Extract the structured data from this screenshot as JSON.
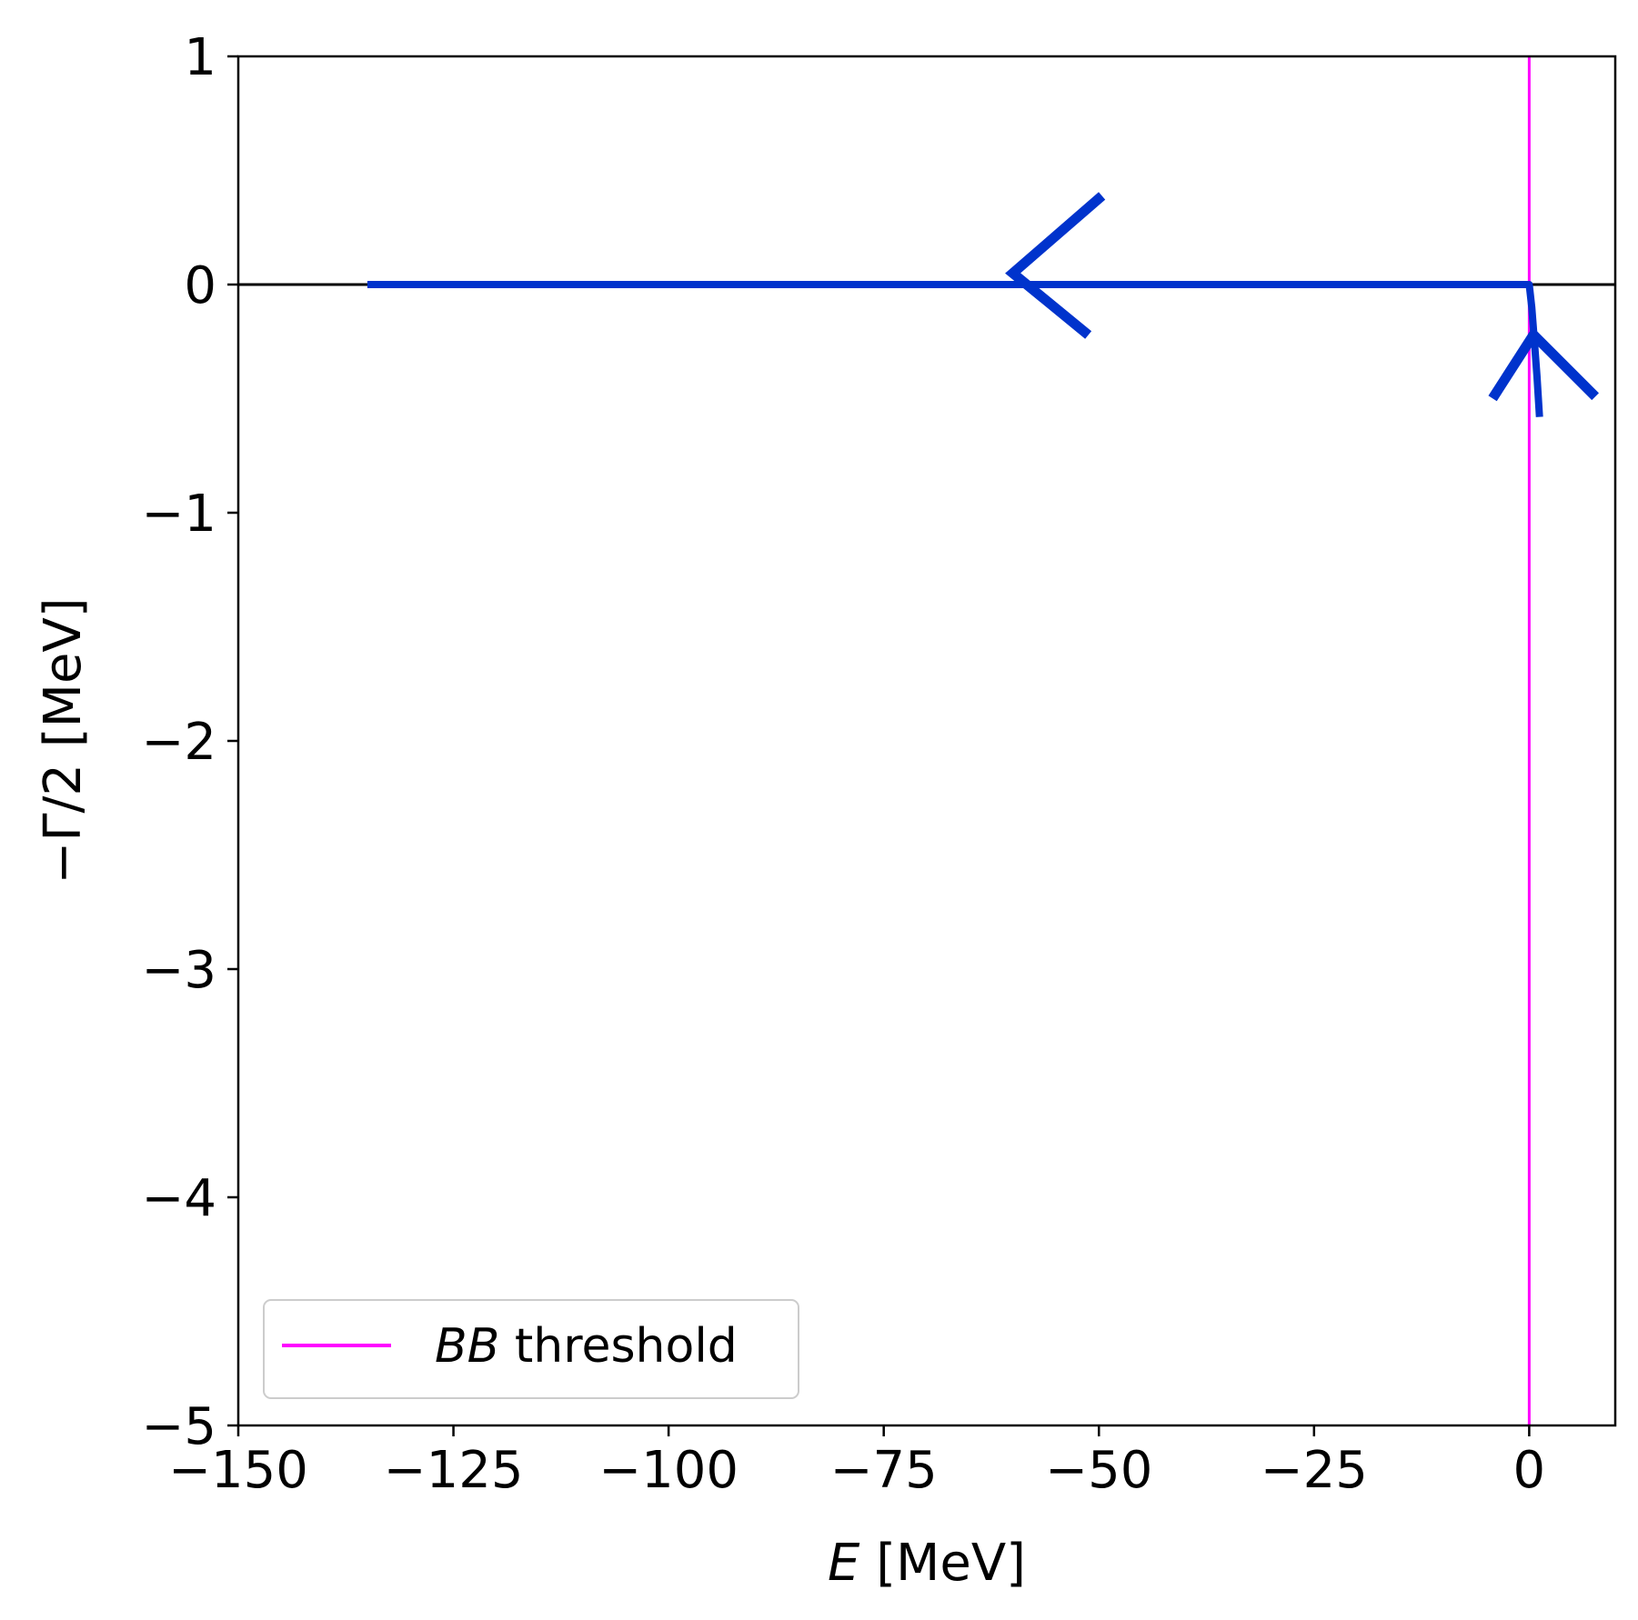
{
  "chart_data": {
    "type": "line",
    "xlabel": {
      "var": "E",
      "unit": " [MeV]"
    },
    "ylabel": "−Γ/2 [MeV]",
    "xlim": [
      -150,
      10
    ],
    "ylim": [
      -5,
      1
    ],
    "xticks": [
      {
        "value": -150,
        "label": "−150"
      },
      {
        "value": -125,
        "label": "−125"
      },
      {
        "value": -100,
        "label": "−100"
      },
      {
        "value": -75,
        "label": "−75"
      },
      {
        "value": -50,
        "label": "−50"
      },
      {
        "value": -25,
        "label": "−25"
      },
      {
        "value": 0,
        "label": "0"
      }
    ],
    "yticks": [
      {
        "value": 1,
        "label": "1"
      },
      {
        "value": 0,
        "label": "0"
      },
      {
        "value": -1,
        "label": "−1"
      },
      {
        "value": -2,
        "label": "−2"
      },
      {
        "value": -3,
        "label": "−3"
      },
      {
        "value": -4,
        "label": "−4"
      },
      {
        "value": -5,
        "label": "−5"
      }
    ],
    "grid": false,
    "legend_position": "lower-left",
    "reference_lines": [
      {
        "orientation": "horizontal",
        "value": 0,
        "color": "#000000"
      },
      {
        "orientation": "vertical",
        "value": 0,
        "color": "#ff00ff",
        "legend": {
          "italic": "BB",
          "text": " threshold"
        }
      }
    ],
    "series": [
      {
        "color": "#0033cc",
        "points": [
          [
            -135,
            0
          ],
          [
            -60,
            0
          ],
          [
            0,
            0
          ],
          [
            0.3,
            -0.1
          ],
          [
            0.6,
            -0.25
          ],
          [
            0.9,
            -0.4
          ],
          [
            1.2,
            -0.58
          ]
        ]
      }
    ],
    "arrows": [
      {
        "tip": [
          -60,
          0.05
        ],
        "direction": "left",
        "color": "#0033cc"
      },
      {
        "tip": [
          0.5,
          -0.22
        ],
        "direction": "up",
        "color": "#0033cc"
      }
    ]
  }
}
